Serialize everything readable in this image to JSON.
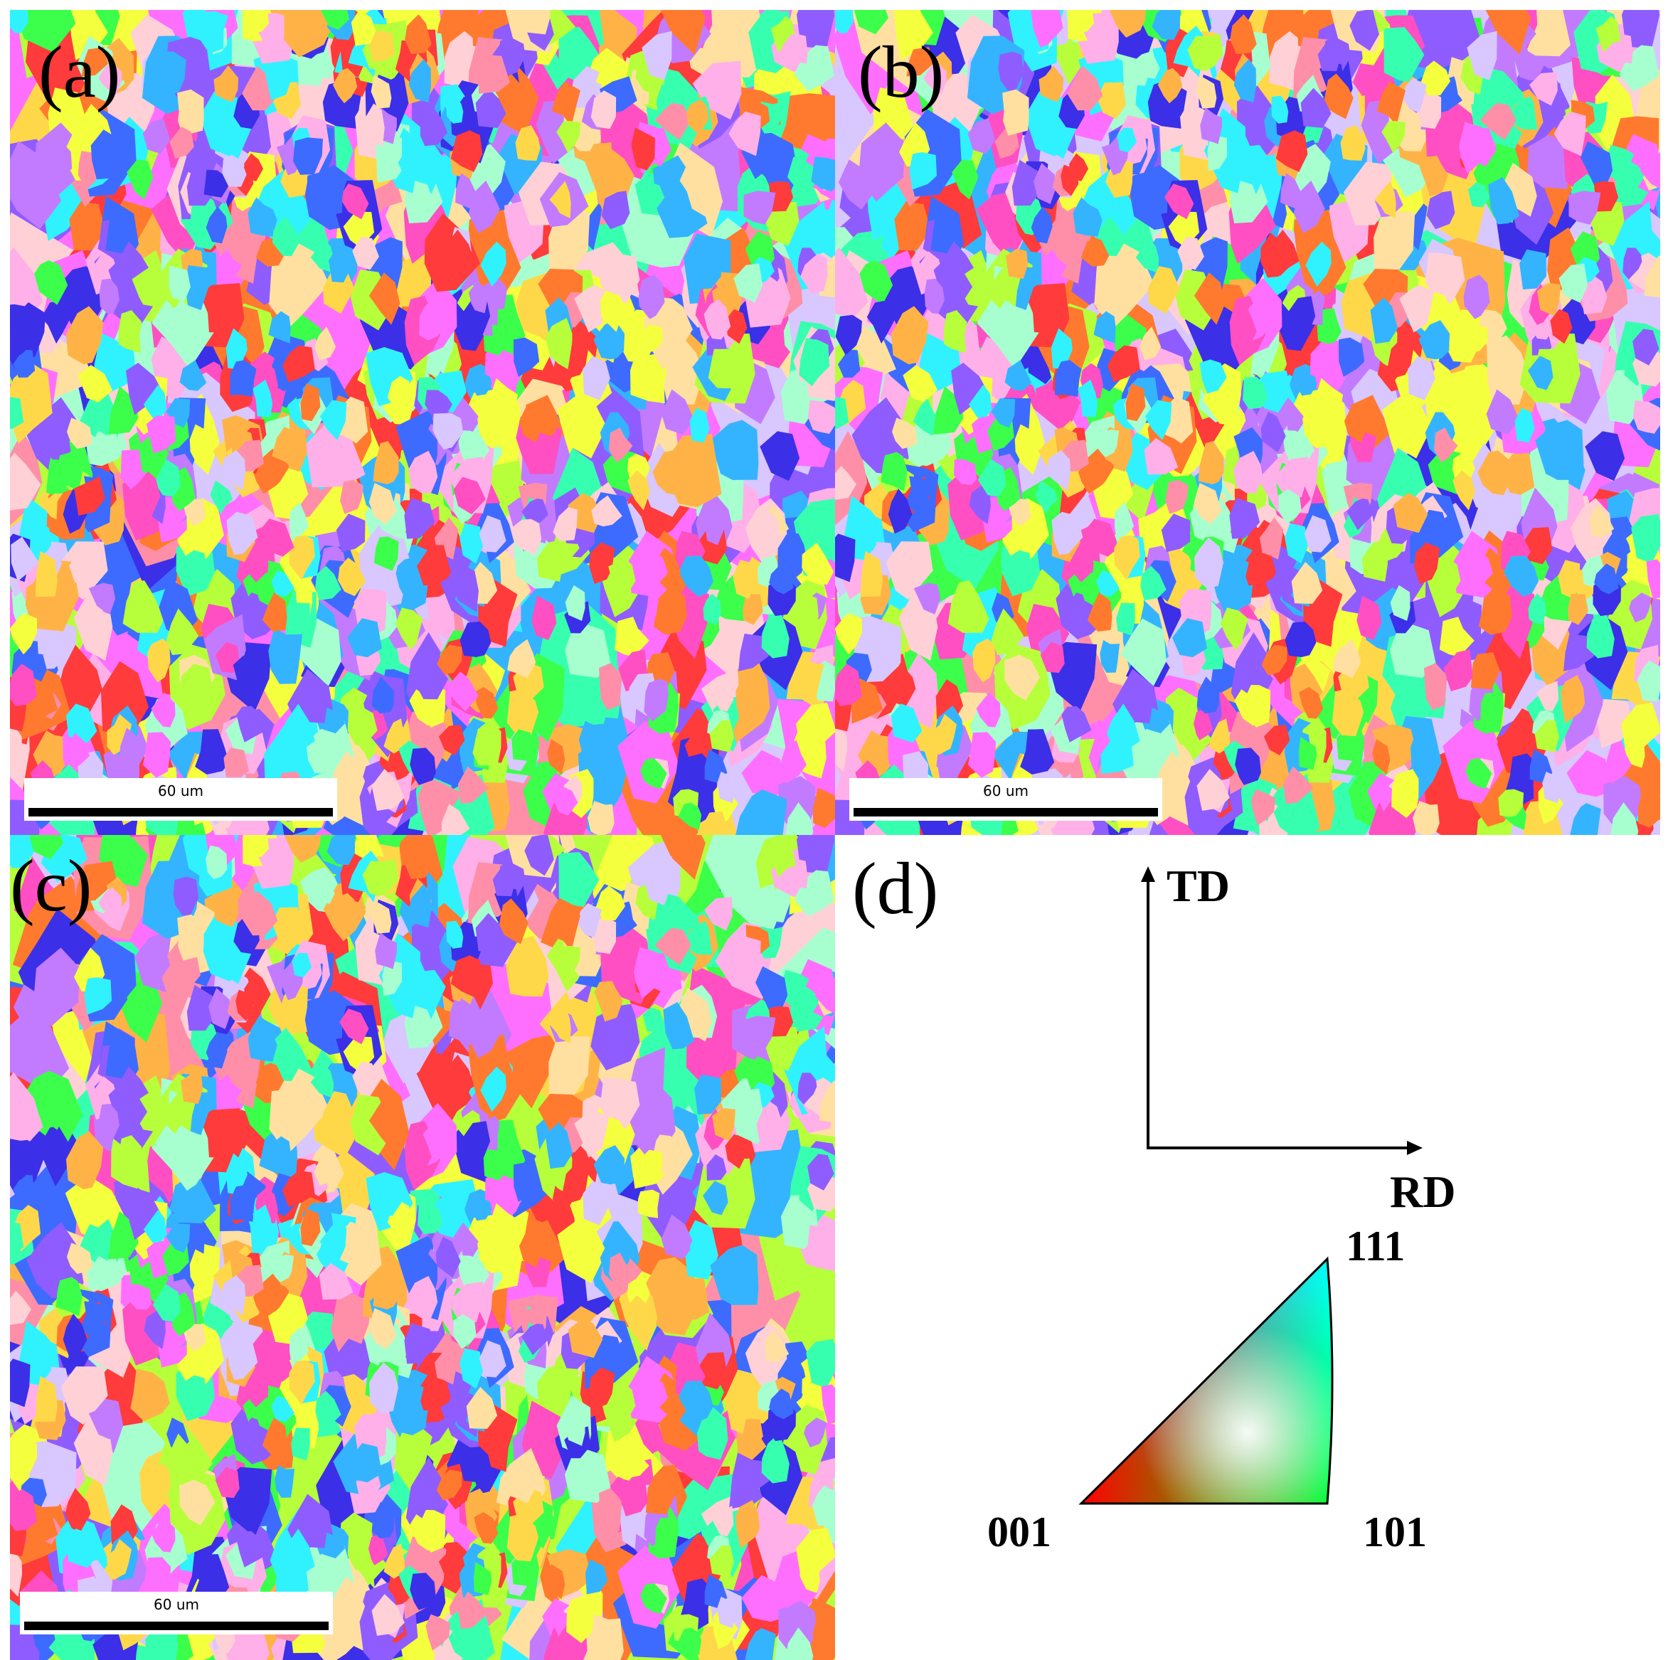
{
  "panels": {
    "a": {
      "label": "(a)",
      "scale_text": "60 um"
    },
    "b": {
      "label": "(b)",
      "scale_text": "60 um"
    },
    "c": {
      "label": "(c)",
      "scale_text": "60 um"
    },
    "d": {
      "label": "(d)"
    }
  },
  "axes": {
    "vertical": "TD",
    "horizontal": "RD"
  },
  "legend": {
    "top": "111",
    "left": "001",
    "right": "101"
  },
  "palette": [
    "#ff3b3b",
    "#ff7a2e",
    "#ffb347",
    "#ffd84a",
    "#f4ff3e",
    "#b6ff3a",
    "#3bff4a",
    "#37ffb0",
    "#30f2ff",
    "#34b4ff",
    "#3d6bff",
    "#3b2fe8",
    "#8f5cff",
    "#c27bff",
    "#ff6fff",
    "#ff4fc2",
    "#ff8fa8",
    "#ffb0e8",
    "#ffd0d6",
    "#d9c7ff",
    "#a7ffcf",
    "#ffe0a0"
  ]
}
